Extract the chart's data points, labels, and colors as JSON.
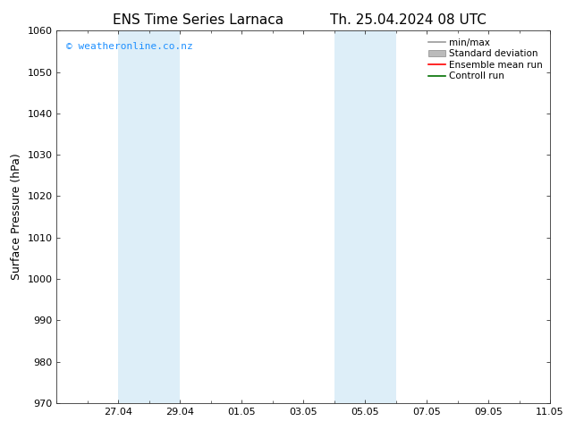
{
  "title_left": "ENS Time Series Larnaca",
  "title_right": "Th. 25.04.2024 08 UTC",
  "ylabel": "Surface Pressure (hPa)",
  "ylim": [
    970,
    1060
  ],
  "yticks": [
    970,
    980,
    990,
    1000,
    1010,
    1020,
    1030,
    1040,
    1050,
    1060
  ],
  "x_min": 0,
  "x_max": 16,
  "xtick_labels": [
    "27.04",
    "29.04",
    "01.05",
    "03.05",
    "05.05",
    "07.05",
    "09.05",
    "11.05"
  ],
  "xtick_positions": [
    2,
    4,
    6,
    8,
    10,
    12,
    14,
    16
  ],
  "shaded_bands": [
    {
      "x_start": 2,
      "x_end": 4
    },
    {
      "x_start": 9,
      "x_end": 11
    }
  ],
  "shaded_color": "#ddeef8",
  "bg_color": "#ffffff",
  "plot_bg_color": "#ffffff",
  "watermark": "© weatheronline.co.nz",
  "watermark_color": "#1e90ff",
  "legend_labels": [
    "min/max",
    "Standard deviation",
    "Ensemble mean run",
    "Controll run"
  ],
  "legend_colors": [
    "#999999",
    "#bbbbbb",
    "#ff0000",
    "#007000"
  ],
  "legend_styles": [
    "line",
    "fill",
    "line",
    "line"
  ],
  "title_fontsize": 11,
  "tick_fontsize": 8,
  "label_fontsize": 9,
  "watermark_fontsize": 8,
  "legend_fontsize": 7.5
}
